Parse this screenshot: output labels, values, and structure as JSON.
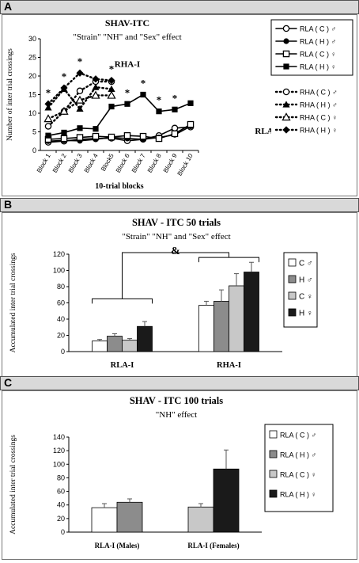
{
  "panels": [
    {
      "letter": "A"
    },
    {
      "letter": "B"
    },
    {
      "letter": "C"
    }
  ],
  "chart_data": [
    {
      "type": "line",
      "panel": "A",
      "title": "SHAV-ITC",
      "subtitle": "\"Strain\" \"NH\" and \"Sex\" effect",
      "xlabel": "10-trial blocks",
      "ylabel": "Number of inter trial crossings",
      "ylim": [
        0,
        30
      ],
      "yticks": [
        0,
        5,
        10,
        15,
        20,
        25,
        30
      ],
      "categories": [
        "Block 1",
        "Block 2",
        "Block 3",
        "Block 4",
        "Block5",
        "Block 6",
        "Block 7",
        "Block 8",
        "Block 9",
        "Block 10"
      ],
      "annotations": [
        "RHA-I",
        "RLA-I",
        "*"
      ],
      "legend_position": "top-right",
      "series": [
        {
          "name": "RLA ( C ) ♂",
          "style": "solid",
          "marker": "circle-open",
          "values": [
            2.2,
            2.5,
            3.0,
            3.2,
            3.3,
            2.6,
            3.0,
            4.0,
            6.0,
            6.3
          ]
        },
        {
          "name": "RLA ( H ) ♂",
          "style": "solid",
          "marker": "circle-filled",
          "values": [
            2.5,
            2.7,
            2.6,
            3.0,
            3.5,
            3.2,
            3.0,
            3.5,
            4.2,
            6.5
          ]
        },
        {
          "name": "RLA ( C ) ♀",
          "style": "solid",
          "marker": "square-open",
          "values": [
            3.0,
            3.2,
            3.5,
            3.8,
            3.6,
            4.0,
            3.8,
            3.2,
            4.5,
            7.0
          ]
        },
        {
          "name": "RLA ( H ) ♀",
          "style": "solid",
          "marker": "square-filled",
          "values": [
            4.0,
            4.8,
            6.0,
            5.8,
            11.8,
            12.5,
            15.0,
            10.5,
            11.0,
            12.7
          ]
        },
        {
          "name": "RHA ( C ) ♂",
          "style": "dotted",
          "marker": "circle-open",
          "values": [
            6.5,
            10.5,
            16.0,
            18.5,
            18.5,
            null,
            null,
            null,
            null,
            null
          ]
        },
        {
          "name": "RHA ( H ) ♂",
          "style": "dotted",
          "marker": "triangle-filled",
          "values": [
            11.5,
            16.5,
            11.2,
            17.0,
            16.5,
            null,
            null,
            null,
            null,
            null
          ]
        },
        {
          "name": "RHA ( C ) ♀",
          "style": "dotted",
          "marker": "triangle-open",
          "values": [
            8.5,
            10.5,
            13.5,
            14.8,
            14.8,
            null,
            null,
            null,
            null,
            null
          ]
        },
        {
          "name": "RHA ( H ) ♀",
          "style": "dotted",
          "marker": "diamond-filled",
          "values": [
            12.5,
            16.8,
            20.8,
            19.2,
            18.8,
            null,
            null,
            null,
            null,
            null
          ]
        }
      ],
      "significance_blocks": [
        "Block 1",
        "Block 2",
        "Block 3",
        "Block5",
        "Block 6",
        "Block 7",
        "Block 8",
        "Block 9"
      ]
    },
    {
      "type": "bar",
      "panel": "B",
      "title": "SHAV - ITC 50 trials",
      "subtitle": "\"Strain\" \"NH\" and \"Sex\" effect",
      "ylabel": "Accumulated  inter trial crossings",
      "ylim": [
        0,
        120
      ],
      "yticks": [
        0,
        20,
        40,
        60,
        80,
        100,
        120
      ],
      "categories": [
        "RLA-I",
        "RHA-I"
      ],
      "legend_position": "right",
      "annotations": [
        "&"
      ],
      "series": [
        {
          "name": "C ♂",
          "color": "#ffffff",
          "values": [
            13,
            57
          ]
        },
        {
          "name": "H ♂",
          "color": "#8c8c8c",
          "values": [
            19,
            62
          ]
        },
        {
          "name": "C ♀",
          "color": "#c8c8c8",
          "values": [
            14,
            81
          ]
        },
        {
          "name": "H ♀",
          "color": "#1a1a1a",
          "values": [
            31,
            98
          ]
        }
      ],
      "errors": [
        [
          2,
          5
        ],
        [
          3,
          14
        ],
        [
          2,
          15
        ],
        [
          6,
          12
        ]
      ]
    },
    {
      "type": "bar",
      "panel": "C",
      "title": "SHAV - ITC 100 trials",
      "subtitle": "\"NH\" effect",
      "ylabel": "Accumulated inter trial crossings",
      "ylim": [
        0,
        140
      ],
      "yticks": [
        0,
        20,
        40,
        60,
        80,
        100,
        120,
        140
      ],
      "categories": [
        "RLA-I (Males)",
        "RLA-I (Females)"
      ],
      "legend_position": "right",
      "series": [
        {
          "name": "RLA ( C ) ♂",
          "color": "#ffffff",
          "values": [
            36,
            null
          ]
        },
        {
          "name": "RLA ( H ) ♂",
          "color": "#8c8c8c",
          "values": [
            44,
            null
          ]
        },
        {
          "name": "RLA ( C ) ♀",
          "color": "#c8c8c8",
          "values": [
            null,
            37
          ]
        },
        {
          "name": "RLA ( H ) ♀",
          "color": "#1a1a1a",
          "values": [
            null,
            93
          ]
        }
      ],
      "errors": [
        [
          6,
          null
        ],
        [
          5,
          null
        ],
        [
          null,
          5
        ],
        [
          null,
          28
        ]
      ]
    }
  ]
}
